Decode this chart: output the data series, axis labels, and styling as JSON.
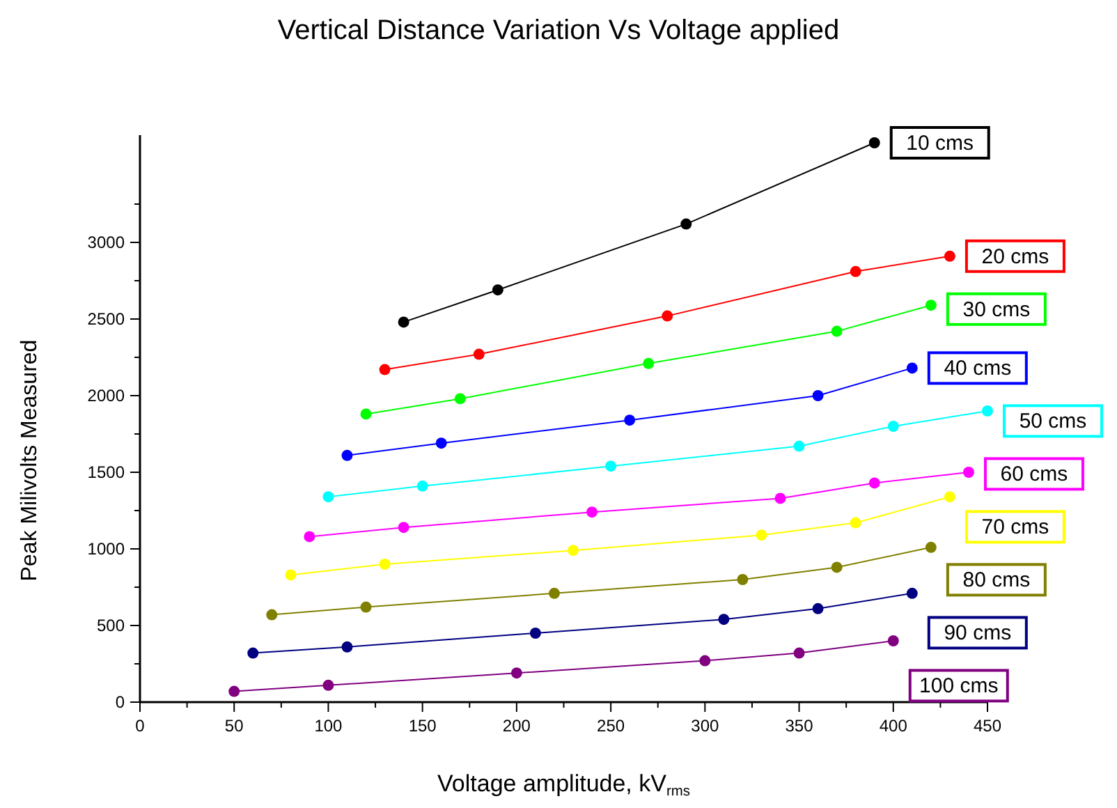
{
  "chart_data": {
    "type": "line",
    "title": "Vertical Distance Variation Vs Voltage applied",
    "xlabel": "Voltage amplitude,  kV$_{rms}$",
    "ylabel": "Peak Milivolts Measured",
    "marker": "circle",
    "legend": "right",
    "grid": false,
    "xlim": [
      0,
      450
    ],
    "xticks": [
      0,
      {
        "value": 25,
        "label": null
      },
      50,
      {
        "value": 75,
        "label": null
      },
      100,
      {
        "value": 125,
        "label": null
      },
      150,
      {
        "value": 175,
        "label": null
      },
      200,
      {
        "value": 225,
        "label": null
      },
      250,
      {
        "value": 275,
        "label": null
      },
      300,
      {
        "value": 325,
        "label": null
      },
      350,
      {
        "value": 375,
        "label": null
      },
      400,
      {
        "value": 425,
        "label": null
      },
      450
    ],
    "ylim": [
      0,
      3700
    ],
    "yticks": [
      0,
      {
        "value": 250,
        "label": null
      },
      500,
      {
        "value": 750,
        "label": null
      },
      1000,
      {
        "value": 1250,
        "label": null
      },
      1500,
      {
        "value": 1750,
        "label": null
      },
      2000,
      {
        "value": 2250,
        "label": null
      },
      2500,
      {
        "value": 2750,
        "label": null
      },
      3000,
      {
        "value": 3250,
        "label": null
      }
    ],
    "series": [
      {
        "name": "10 cms",
        "color": "#000000",
        "x": [
          140,
          190,
          290,
          390
        ],
        "values": [
          2480,
          2690,
          3120,
          3650
        ]
      },
      {
        "name": "20 cms",
        "color": "#ff0000",
        "x": [
          130,
          180,
          280,
          380,
          430
        ],
        "values": [
          2170,
          2270,
          2520,
          2810,
          2910
        ]
      },
      {
        "name": "30 cms",
        "color": "#00ff00",
        "x": [
          120,
          170,
          270,
          370,
          420
        ],
        "values": [
          1880,
          1980,
          2210,
          2420,
          2590
        ]
      },
      {
        "name": "40 cms",
        "color": "#0000ff",
        "x": [
          110,
          160,
          260,
          360,
          410
        ],
        "values": [
          1610,
          1690,
          1840,
          2000,
          2180
        ]
      },
      {
        "name": "50 cms",
        "color": "#00ffff",
        "x": [
          100,
          150,
          250,
          350,
          400,
          450
        ],
        "values": [
          1340,
          1410,
          1540,
          1670,
          1800,
          1900
        ]
      },
      {
        "name": "60 cms",
        "color": "#ff00ff",
        "x": [
          90,
          140,
          240,
          340,
          390,
          440
        ],
        "values": [
          1080,
          1140,
          1240,
          1330,
          1430,
          1500
        ]
      },
      {
        "name": "70 cms",
        "color": "#ffff00",
        "x": [
          80,
          130,
          230,
          330,
          380,
          430
        ],
        "values": [
          830,
          900,
          990,
          1090,
          1170,
          1340
        ]
      },
      {
        "name": "80 cms",
        "color": "#808000",
        "x": [
          70,
          120,
          220,
          320,
          370,
          420
        ],
        "values": [
          570,
          620,
          710,
          800,
          880,
          1010
        ]
      },
      {
        "name": "90 cms",
        "color": "#000080",
        "x": [
          60,
          110,
          210,
          310,
          360,
          410
        ],
        "values": [
          320,
          360,
          450,
          540,
          610,
          710
        ]
      },
      {
        "name": "100 cms",
        "color": "#800080",
        "x": [
          50,
          100,
          200,
          300,
          350,
          400
        ],
        "values": [
          70,
          110,
          190,
          270,
          320,
          400
        ]
      }
    ]
  }
}
